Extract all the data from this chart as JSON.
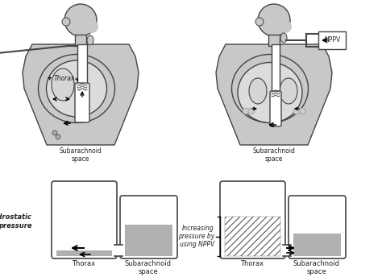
{
  "bg_color": "#f2f2f2",
  "body_color": "#c8c8c8",
  "body_outline": "#444444",
  "fluid_color": "#b0b0b0",
  "hatch_color": "#888888",
  "text_color": "#222222",
  "figure_bg": "#ffffff",
  "left_label_hydrostatic": "Hydrostatic\npressure",
  "right_label_nppv": "Increasing\npressure by\nusing NPPV",
  "label_nppv_box": "NPPV"
}
